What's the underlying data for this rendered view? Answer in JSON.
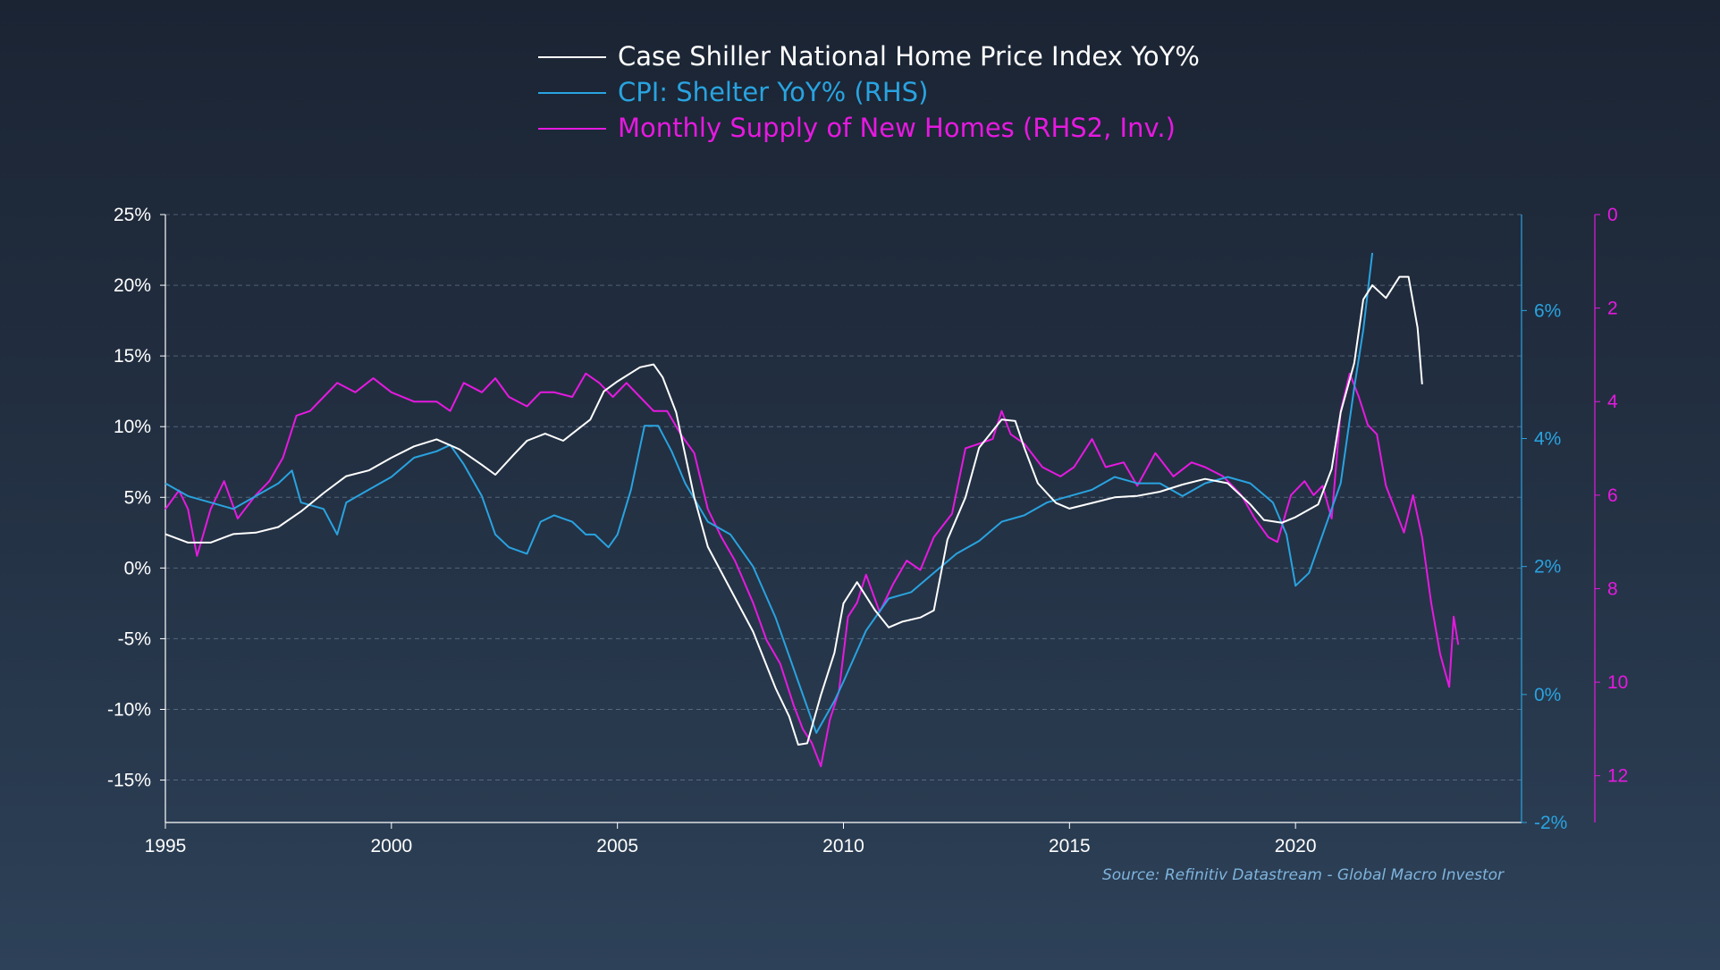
{
  "chart_data": {
    "type": "line",
    "title": "",
    "source": "Source: Refinitiv Datastream - Global Macro Investor",
    "x_axis": {
      "range": [
        1995,
        2025
      ],
      "ticks": [
        "1995",
        "2000",
        "2005",
        "2010",
        "2015",
        "2020"
      ]
    },
    "y_left": {
      "range": [
        -18,
        25
      ],
      "ticks": [
        "25%",
        "20%",
        "15%",
        "10%",
        "5%",
        "0%",
        "-5%",
        "-10%",
        "-15%"
      ],
      "values": [
        25,
        20,
        15,
        10,
        5,
        0,
        -5,
        -10,
        -15
      ]
    },
    "y_right": {
      "range": [
        -2,
        7.5
      ],
      "color": "#29a3e0",
      "ticks": [
        "6%",
        "4%",
        "2%",
        "0%",
        "-2%"
      ],
      "values": [
        6,
        4,
        2,
        0,
        -2
      ]
    },
    "y_right2": {
      "range": [
        0,
        13
      ],
      "inverted": true,
      "color": "#e619e0",
      "ticks": [
        "0",
        "2",
        "4",
        "6",
        "8",
        "10",
        "12"
      ],
      "values": [
        0,
        2,
        4,
        6,
        8,
        10,
        12
      ]
    },
    "grid": true,
    "legend_position": "top-center",
    "series": [
      {
        "name": "Case Shiller National Home Price Index YoY%",
        "axis": "left",
        "color": "#ffffff",
        "points": [
          [
            1995,
            2.4
          ],
          [
            1995.5,
            1.8
          ],
          [
            1996,
            1.8
          ],
          [
            1996.5,
            2.4
          ],
          [
            1997,
            2.5
          ],
          [
            1997.5,
            2.9
          ],
          [
            1998,
            4.0
          ],
          [
            1998.5,
            5.3
          ],
          [
            1999,
            6.5
          ],
          [
            1999.5,
            6.9
          ],
          [
            2000,
            7.8
          ],
          [
            2000.5,
            8.6
          ],
          [
            2001,
            9.1
          ],
          [
            2001.5,
            8.4
          ],
          [
            2002,
            7.3
          ],
          [
            2002.3,
            6.6
          ],
          [
            2002.7,
            8.0
          ],
          [
            2003,
            9.0
          ],
          [
            2003.4,
            9.5
          ],
          [
            2003.8,
            9.0
          ],
          [
            2004,
            9.5
          ],
          [
            2004.4,
            10.5
          ],
          [
            2004.7,
            12.5
          ],
          [
            2005,
            13.2
          ],
          [
            2005.5,
            14.2
          ],
          [
            2005.8,
            14.4
          ],
          [
            2006,
            13.5
          ],
          [
            2006.3,
            11.0
          ],
          [
            2006.7,
            5.0
          ],
          [
            2007,
            1.5
          ],
          [
            2007.5,
            -1.5
          ],
          [
            2008,
            -4.5
          ],
          [
            2008.5,
            -8.5
          ],
          [
            2008.8,
            -10.5
          ],
          [
            2009,
            -12.5
          ],
          [
            2009.2,
            -12.4
          ],
          [
            2009.5,
            -9.0
          ],
          [
            2009.8,
            -6.0
          ],
          [
            2010,
            -2.5
          ],
          [
            2010.3,
            -1.0
          ],
          [
            2010.7,
            -3.0
          ],
          [
            2011,
            -4.2
          ],
          [
            2011.3,
            -3.8
          ],
          [
            2011.7,
            -3.5
          ],
          [
            2012,
            -3.0
          ],
          [
            2012.3,
            2.0
          ],
          [
            2012.7,
            5.0
          ],
          [
            2013,
            8.5
          ],
          [
            2013.5,
            10.5
          ],
          [
            2013.8,
            10.4
          ],
          [
            2014,
            8.5
          ],
          [
            2014.3,
            6.0
          ],
          [
            2014.7,
            4.6
          ],
          [
            2015,
            4.2
          ],
          [
            2015.5,
            4.6
          ],
          [
            2016,
            5.0
          ],
          [
            2016.5,
            5.1
          ],
          [
            2017,
            5.4
          ],
          [
            2017.5,
            5.9
          ],
          [
            2018,
            6.3
          ],
          [
            2018.5,
            6.0
          ],
          [
            2019,
            4.5
          ],
          [
            2019.3,
            3.4
          ],
          [
            2019.7,
            3.2
          ],
          [
            2020,
            3.6
          ],
          [
            2020.5,
            4.5
          ],
          [
            2020.8,
            7.0
          ],
          [
            2021,
            11.0
          ],
          [
            2021.3,
            14.5
          ],
          [
            2021.5,
            19.0
          ],
          [
            2021.7,
            20.0
          ],
          [
            2022,
            19.1
          ],
          [
            2022.3,
            20.6
          ],
          [
            2022.5,
            20.6
          ],
          [
            2022.7,
            17.0
          ],
          [
            2022.8,
            13.0
          ]
        ]
      },
      {
        "name": "CPI: Shelter YoY% (RHS)",
        "axis": "right",
        "color": "#29a3e0",
        "points": [
          [
            1995,
            3.3
          ],
          [
            1995.5,
            3.1
          ],
          [
            1996,
            3.0
          ],
          [
            1996.5,
            2.9
          ],
          [
            1997,
            3.1
          ],
          [
            1997.5,
            3.3
          ],
          [
            1997.8,
            3.5
          ],
          [
            1998,
            3.0
          ],
          [
            1998.5,
            2.9
          ],
          [
            1998.8,
            2.5
          ],
          [
            1999,
            3.0
          ],
          [
            1999.5,
            3.2
          ],
          [
            2000,
            3.4
          ],
          [
            2000.5,
            3.7
          ],
          [
            2001,
            3.8
          ],
          [
            2001.3,
            3.9
          ],
          [
            2001.6,
            3.6
          ],
          [
            2002,
            3.1
          ],
          [
            2002.3,
            2.5
          ],
          [
            2002.6,
            2.3
          ],
          [
            2003,
            2.2
          ],
          [
            2003.3,
            2.7
          ],
          [
            2003.6,
            2.8
          ],
          [
            2004,
            2.7
          ],
          [
            2004.3,
            2.5
          ],
          [
            2004.5,
            2.5
          ],
          [
            2004.8,
            2.3
          ],
          [
            2005,
            2.5
          ],
          [
            2005.3,
            3.2
          ],
          [
            2005.6,
            4.2
          ],
          [
            2005.9,
            4.2
          ],
          [
            2006.2,
            3.8
          ],
          [
            2006.5,
            3.3
          ],
          [
            2007,
            2.7
          ],
          [
            2007.5,
            2.5
          ],
          [
            2008,
            2.0
          ],
          [
            2008.5,
            1.2
          ],
          [
            2009,
            0.2
          ],
          [
            2009.4,
            -0.6
          ],
          [
            2009.8,
            -0.1
          ],
          [
            2010,
            0.2
          ],
          [
            2010.5,
            1.0
          ],
          [
            2011,
            1.5
          ],
          [
            2011.5,
            1.6
          ],
          [
            2012,
            1.9
          ],
          [
            2012.5,
            2.2
          ],
          [
            2013,
            2.4
          ],
          [
            2013.5,
            2.7
          ],
          [
            2014,
            2.8
          ],
          [
            2014.5,
            3.0
          ],
          [
            2015,
            3.1
          ],
          [
            2015.5,
            3.2
          ],
          [
            2016,
            3.4
          ],
          [
            2016.5,
            3.3
          ],
          [
            2017,
            3.3
          ],
          [
            2017.5,
            3.1
          ],
          [
            2018,
            3.3
          ],
          [
            2018.5,
            3.4
          ],
          [
            2019,
            3.3
          ],
          [
            2019.5,
            3.0
          ],
          [
            2019.8,
            2.5
          ],
          [
            2020,
            1.7
          ],
          [
            2020.3,
            1.9
          ],
          [
            2020.6,
            2.5
          ],
          [
            2021,
            3.3
          ],
          [
            2021.3,
            4.8
          ],
          [
            2021.5,
            5.7
          ],
          [
            2021.7,
            6.9
          ]
        ]
      },
      {
        "name": "Monthly Supply of New Homes (RHS2, Inv.)",
        "axis": "right2",
        "color": "#e619e0",
        "points": [
          [
            1995,
            6.3
          ],
          [
            1995.3,
            5.9
          ],
          [
            1995.5,
            6.3
          ],
          [
            1995.7,
            7.3
          ],
          [
            1996,
            6.3
          ],
          [
            1996.3,
            5.7
          ],
          [
            1996.6,
            6.5
          ],
          [
            1997,
            6.0
          ],
          [
            1997.3,
            5.7
          ],
          [
            1997.6,
            5.2
          ],
          [
            1997.9,
            4.3
          ],
          [
            1998.2,
            4.2
          ],
          [
            1998.5,
            3.9
          ],
          [
            1998.8,
            3.6
          ],
          [
            1999.2,
            3.8
          ],
          [
            1999.6,
            3.5
          ],
          [
            2000,
            3.8
          ],
          [
            2000.5,
            4.0
          ],
          [
            2001,
            4.0
          ],
          [
            2001.3,
            4.2
          ],
          [
            2001.6,
            3.6
          ],
          [
            2002,
            3.8
          ],
          [
            2002.3,
            3.5
          ],
          [
            2002.6,
            3.9
          ],
          [
            2003,
            4.1
          ],
          [
            2003.3,
            3.8
          ],
          [
            2003.6,
            3.8
          ],
          [
            2004,
            3.9
          ],
          [
            2004.3,
            3.4
          ],
          [
            2004.6,
            3.6
          ],
          [
            2004.9,
            3.9
          ],
          [
            2005.2,
            3.6
          ],
          [
            2005.5,
            3.9
          ],
          [
            2005.8,
            4.2
          ],
          [
            2006.1,
            4.2
          ],
          [
            2006.4,
            4.7
          ],
          [
            2006.7,
            5.1
          ],
          [
            2007,
            6.3
          ],
          [
            2007.3,
            6.9
          ],
          [
            2007.6,
            7.4
          ],
          [
            2008,
            8.3
          ],
          [
            2008.3,
            9.1
          ],
          [
            2008.6,
            9.6
          ],
          [
            2008.9,
            10.5
          ],
          [
            2009.1,
            11.0
          ],
          [
            2009.3,
            11.3
          ],
          [
            2009.5,
            11.8
          ],
          [
            2009.7,
            10.8
          ],
          [
            2009.9,
            10.2
          ],
          [
            2010.1,
            8.6
          ],
          [
            2010.3,
            8.3
          ],
          [
            2010.5,
            7.7
          ],
          [
            2010.8,
            8.5
          ],
          [
            2011.1,
            7.9
          ],
          [
            2011.4,
            7.4
          ],
          [
            2011.7,
            7.6
          ],
          [
            2012,
            6.9
          ],
          [
            2012.4,
            6.4
          ],
          [
            2012.7,
            5.0
          ],
          [
            2013,
            4.9
          ],
          [
            2013.3,
            4.8
          ],
          [
            2013.5,
            4.2
          ],
          [
            2013.7,
            4.7
          ],
          [
            2014,
            4.9
          ],
          [
            2014.4,
            5.4
          ],
          [
            2014.8,
            5.6
          ],
          [
            2015.1,
            5.4
          ],
          [
            2015.5,
            4.8
          ],
          [
            2015.8,
            5.4
          ],
          [
            2016.2,
            5.3
          ],
          [
            2016.5,
            5.8
          ],
          [
            2016.9,
            5.1
          ],
          [
            2017.3,
            5.6
          ],
          [
            2017.7,
            5.3
          ],
          [
            2018,
            5.4
          ],
          [
            2018.4,
            5.6
          ],
          [
            2018.8,
            6.0
          ],
          [
            2019.1,
            6.5
          ],
          [
            2019.4,
            6.9
          ],
          [
            2019.6,
            7.0
          ],
          [
            2019.9,
            6.0
          ],
          [
            2020.2,
            5.7
          ],
          [
            2020.4,
            6.0
          ],
          [
            2020.6,
            5.8
          ],
          [
            2020.8,
            6.5
          ],
          [
            2021,
            4.2
          ],
          [
            2021.2,
            3.4
          ],
          [
            2021.4,
            3.9
          ],
          [
            2021.6,
            4.5
          ],
          [
            2021.8,
            4.7
          ],
          [
            2022,
            5.8
          ],
          [
            2022.2,
            6.3
          ],
          [
            2022.4,
            6.8
          ],
          [
            2022.6,
            6.0
          ],
          [
            2022.8,
            6.9
          ],
          [
            2023,
            8.3
          ],
          [
            2023.2,
            9.4
          ],
          [
            2023.4,
            10.1
          ],
          [
            2023.5,
            8.6
          ],
          [
            2023.6,
            9.2
          ]
        ]
      }
    ]
  }
}
